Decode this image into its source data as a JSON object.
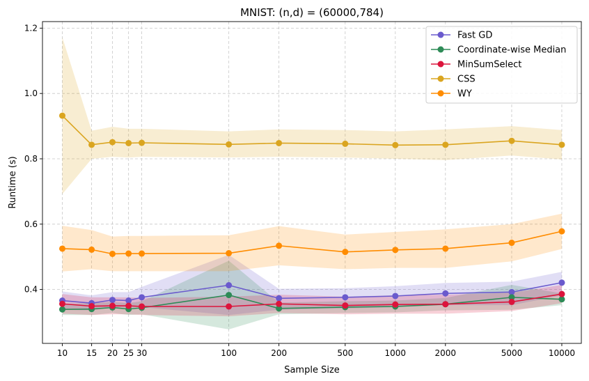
{
  "chart_data": {
    "type": "line",
    "title": "MNIST: (n,d) = (60000,784)",
    "xlabel": "Sample Size",
    "ylabel": "Runtime (s)",
    "xscale": "log",
    "x": [
      10,
      15,
      20,
      25,
      30,
      100,
      200,
      500,
      1000,
      2000,
      5000,
      10000
    ],
    "x_tick_labels": [
      "10",
      "15",
      "20",
      "25",
      "30",
      "100",
      "200",
      "500",
      "1000",
      "2000",
      "5000",
      "10000"
    ],
    "xlim": [
      7.6,
      13100
    ],
    "ylim": [
      0.235,
      1.22
    ],
    "y_ticks": [
      0.4,
      0.6,
      0.8,
      1.0,
      1.2
    ],
    "y_tick_labels": [
      "0.4",
      "0.6",
      "0.8",
      "1.0",
      "1.2"
    ],
    "grid": true,
    "legend_position": "top-right",
    "series": [
      {
        "name": "Fast GD",
        "color": "#6a5acd",
        "values": [
          0.366,
          0.358,
          0.368,
          0.366,
          0.376,
          0.413,
          0.373,
          0.376,
          0.38,
          0.388,
          0.392,
          0.421
        ],
        "lower": [
          0.338,
          0.336,
          0.346,
          0.344,
          0.346,
          0.322,
          0.338,
          0.342,
          0.346,
          0.352,
          0.352,
          0.382
        ],
        "upper": [
          0.394,
          0.382,
          0.392,
          0.392,
          0.408,
          0.506,
          0.402,
          0.404,
          0.41,
          0.42,
          0.424,
          0.454
        ]
      },
      {
        "name": "Coordinate-wise Median",
        "color": "#2e8b57",
        "values": [
          0.339,
          0.34,
          0.345,
          0.34,
          0.344,
          0.383,
          0.342,
          0.346,
          0.348,
          0.355,
          0.376,
          0.37
        ],
        "lower": [
          0.322,
          0.322,
          0.328,
          0.322,
          0.324,
          0.278,
          0.324,
          0.328,
          0.33,
          0.336,
          0.338,
          0.352
        ],
        "upper": [
          0.356,
          0.358,
          0.362,
          0.358,
          0.364,
          0.488,
          0.36,
          0.364,
          0.366,
          0.374,
          0.414,
          0.388
        ]
      },
      {
        "name": "MinSumSelect",
        "color": "#dc143c",
        "values": [
          0.356,
          0.349,
          0.35,
          0.35,
          0.348,
          0.348,
          0.356,
          0.351,
          0.354,
          0.355,
          0.362,
          0.386
        ],
        "lower": [
          0.326,
          0.322,
          0.324,
          0.324,
          0.322,
          0.318,
          0.328,
          0.324,
          0.326,
          0.326,
          0.334,
          0.358
        ],
        "upper": [
          0.386,
          0.376,
          0.376,
          0.376,
          0.374,
          0.378,
          0.384,
          0.378,
          0.382,
          0.384,
          0.39,
          0.414
        ]
      },
      {
        "name": "CSS",
        "color": "#daa520",
        "values": [
          0.932,
          0.843,
          0.851,
          0.848,
          0.849,
          0.844,
          0.848,
          0.846,
          0.842,
          0.843,
          0.855,
          0.843
        ],
        "lower": [
          0.692,
          0.8,
          0.806,
          0.804,
          0.806,
          0.804,
          0.806,
          0.804,
          0.8,
          0.796,
          0.81,
          0.798
        ],
        "upper": [
          1.172,
          0.886,
          0.898,
          0.892,
          0.892,
          0.884,
          0.89,
          0.888,
          0.884,
          0.89,
          0.9,
          0.888
        ]
      },
      {
        "name": "WY",
        "color": "#ff8c00",
        "values": [
          0.525,
          0.522,
          0.509,
          0.51,
          0.51,
          0.511,
          0.534,
          0.515,
          0.521,
          0.525,
          0.543,
          0.578
        ],
        "lower": [
          0.455,
          0.462,
          0.456,
          0.456,
          0.456,
          0.456,
          0.474,
          0.462,
          0.466,
          0.466,
          0.486,
          0.524
        ],
        "upper": [
          0.595,
          0.582,
          0.562,
          0.564,
          0.564,
          0.566,
          0.594,
          0.568,
          0.576,
          0.584,
          0.6,
          0.632
        ]
      }
    ]
  }
}
